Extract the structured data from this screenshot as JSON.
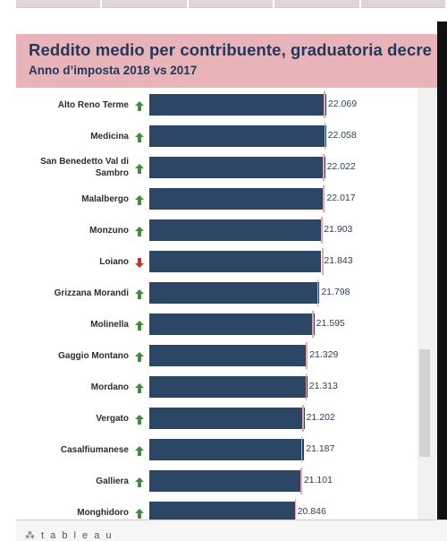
{
  "header": {
    "title": "Reddito medio per contribuente, graduatoria decre",
    "subtitle": "Anno d’imposta 2018 vs 2017"
  },
  "footer": {
    "brand": "⁂ t a b l e a u"
  },
  "colors": {
    "bar": "#2c4666",
    "reference_marker": "#f0a3ad",
    "arrow_up": "#3e8e3e",
    "arrow_down": "#c0392b",
    "header_band": "#e9b4b9",
    "title": "#24385a"
  },
  "chart_data": {
    "type": "bar",
    "orientation": "horizontal",
    "categories": [
      "Alto Reno Terme",
      "Medicina",
      "San Benedetto Val di Sambro",
      "Malalbergo",
      "Monzuno",
      "Loiano",
      "Grizzana Morandi",
      "Molinella",
      "Gaggio Montano",
      "Mordano",
      "Vergato",
      "Casalfiumanese",
      "Galliera",
      "Monghidoro"
    ],
    "series": [
      {
        "values": [
          22069,
          22058,
          22022,
          22017,
          21903,
          21843,
          21798,
          21595,
          21329,
          21313,
          21202,
          21187,
          21101,
          20846
        ]
      }
    ],
    "value_labels": [
      "22.069",
      "22.058",
      "22.022",
      "22.017",
      "21.903",
      "21.843",
      "21.798",
      "21.595",
      "21.329",
      "21.313",
      "21.202",
      "21.187",
      "21.101",
      "20.846"
    ],
    "trend": [
      "up",
      "up",
      "up",
      "up",
      "up",
      "down",
      "up",
      "up",
      "up",
      "up",
      "up",
      "up",
      "up",
      "up"
    ],
    "reference_2017": [
      21976,
      21988,
      21935,
      21940,
      21858,
      21908,
      21706,
      21508,
      21258,
      21243,
      21110,
      21067,
      21045,
      20804
    ],
    "xlim": [
      15000,
      22250
    ]
  }
}
